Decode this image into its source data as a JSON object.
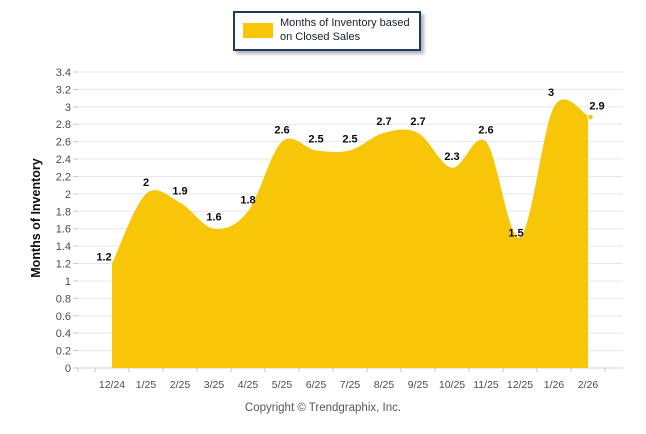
{
  "legend": {
    "label": "Months of Inventory based on Closed Sales"
  },
  "footer": {
    "text": "Copyright © Trendgraphix, Inc."
  },
  "colors": {
    "area": "#F7C608",
    "legend_border": "#1E3A5F",
    "grid": "#E8E8E8",
    "axis_line": "#D6D6D6",
    "tick_mark": "#C8C8C8",
    "tick_text": "#424C5E",
    "data_label_text": "#0A0A0A",
    "footer_text": "#575757"
  },
  "chart_data": {
    "type": "area",
    "title": "",
    "series_name": "Months of Inventory based on Closed Sales",
    "categories": [
      "12/24",
      "1/25",
      "2/25",
      "3/25",
      "4/25",
      "5/25",
      "6/25",
      "7/25",
      "8/25",
      "9/25",
      "10/25",
      "11/25",
      "12/25",
      "1/26",
      "2/26"
    ],
    "values": [
      1.2,
      2,
      1.9,
      1.6,
      1.8,
      2.6,
      2.5,
      2.5,
      2.7,
      2.7,
      2.3,
      2.6,
      1.5,
      3,
      2.9
    ],
    "xlabel": "",
    "ylabel": "Months of Inventory",
    "ylim": [
      0,
      3.4
    ],
    "ytick_step": 0.2,
    "grid": true,
    "legend_position": "top",
    "data_labels": true,
    "curve": "smooth",
    "end_point_marker": true
  }
}
